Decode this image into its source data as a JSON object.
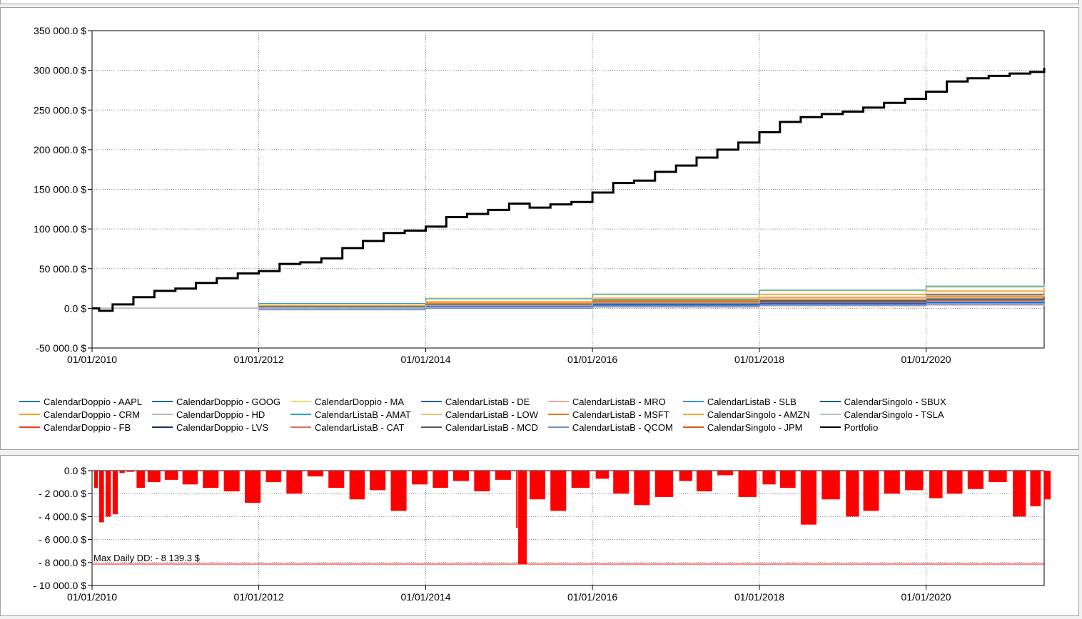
{
  "chart_data": [
    {
      "type": "line",
      "title": "",
      "xlabel": "",
      "ylabel": "",
      "x_range": [
        "01/01/2010",
        "01/06/2021"
      ],
      "ylim": [
        -50000,
        350000
      ],
      "yticks": [
        "350 000.0 $",
        "300 000.0 $",
        "250 000.0 $",
        "200 000.0 $",
        "150 000.0 $",
        "100 000.0 $",
        "50 000.0 $",
        "0.0 $",
        "-50 000.0 $"
      ],
      "ytick_values": [
        350000,
        300000,
        250000,
        200000,
        150000,
        100000,
        50000,
        0,
        -50000
      ],
      "xticks": [
        "01/01/2010",
        "01/01/2012",
        "01/01/2014",
        "01/01/2016",
        "01/01/2018",
        "01/01/2020"
      ],
      "grid": true,
      "legend_position": "bottom",
      "series": [
        {
          "name": "CalendarDoppio - AAPL",
          "color": "#1f77b4",
          "x": [
            "2010-01-01",
            "2012-01-01",
            "2014-01-01",
            "2016-01-01",
            "2018-01-01",
            "2020-01-01",
            "2021-06-01"
          ],
          "values": [
            0,
            1500,
            3000,
            4000,
            5500,
            7000,
            8000
          ]
        },
        {
          "name": "CalendarDoppio - CRM",
          "color": "#ff9f1c",
          "x": [
            "2010-01-01",
            "2012-01-01",
            "2014-01-01",
            "2016-01-01",
            "2018-01-01",
            "2020-01-01",
            "2021-06-01"
          ],
          "values": [
            0,
            2500,
            6000,
            9000,
            12000,
            15000,
            18000
          ]
        },
        {
          "name": "CalendarDoppio - FB",
          "color": "#e8401c",
          "x": [
            "2010-01-01",
            "2012-01-01",
            "2014-01-01",
            "2016-01-01",
            "2018-01-01",
            "2020-01-01",
            "2021-06-01"
          ],
          "values": [
            0,
            500,
            2500,
            5000,
            7500,
            10000,
            12000
          ]
        },
        {
          "name": "CalendarDoppio - GOOG",
          "color": "#1d6a8a",
          "x": [
            "2010-01-01",
            "2012-01-01",
            "2014-01-01",
            "2016-01-01",
            "2018-01-01",
            "2020-01-01",
            "2021-06-01"
          ],
          "values": [
            0,
            3000,
            8000,
            11000,
            14000,
            17000,
            20000
          ]
        },
        {
          "name": "CalendarDoppio - HD",
          "color": "#b8b8b8",
          "x": [
            "2010-01-01",
            "2012-01-01",
            "2014-01-01",
            "2016-01-01",
            "2018-01-01",
            "2020-01-01",
            "2021-06-01"
          ],
          "values": [
            0,
            -2000,
            1000,
            3000,
            6000,
            9000,
            11000
          ]
        },
        {
          "name": "CalendarDoppio - LVS",
          "color": "#1a2f6b",
          "x": [
            "2010-01-01",
            "2012-01-01",
            "2014-01-01",
            "2016-01-01",
            "2018-01-01",
            "2020-01-01",
            "2021-06-01"
          ],
          "values": [
            0,
            1000,
            4000,
            6000,
            8000,
            11000,
            13000
          ]
        },
        {
          "name": "CalendarDoppio - MA",
          "color": "#ffd966",
          "x": [
            "2010-01-01",
            "2012-01-01",
            "2014-01-01",
            "2016-01-01",
            "2018-01-01",
            "2020-01-01",
            "2021-06-01"
          ],
          "values": [
            0,
            4000,
            13000,
            17000,
            22000,
            26000,
            28000
          ]
        },
        {
          "name": "CalendarListaB - AMAT",
          "color": "#2aa1d4",
          "x": [
            "2010-01-01",
            "2012-01-01",
            "2014-01-01",
            "2016-01-01",
            "2018-01-01",
            "2020-01-01",
            "2021-06-01"
          ],
          "values": [
            0,
            6000,
            12000,
            18000,
            23000,
            28000,
            31000
          ]
        },
        {
          "name": "CalendarListaB - CAT",
          "color": "#e07050",
          "x": [
            "2010-01-01",
            "2012-01-01",
            "2014-01-01",
            "2016-01-01",
            "2018-01-01",
            "2020-01-01",
            "2021-06-01"
          ],
          "values": [
            0,
            2000,
            5000,
            8000,
            11000,
            14000,
            16000
          ]
        },
        {
          "name": "CalendarListaB - DE",
          "color": "#1560bd",
          "x": [
            "2010-01-01",
            "2012-01-01",
            "2014-01-01",
            "2016-01-01",
            "2018-01-01",
            "2020-01-01",
            "2021-06-01"
          ],
          "values": [
            0,
            1000,
            3000,
            5000,
            6000,
            8000,
            9000
          ]
        },
        {
          "name": "CalendarListaB - LOW",
          "color": "#f5c27a",
          "x": [
            "2010-01-01",
            "2012-01-01",
            "2014-01-01",
            "2016-01-01",
            "2018-01-01",
            "2020-01-01",
            "2021-06-01"
          ],
          "values": [
            0,
            3000,
            9000,
            13000,
            17000,
            21000,
            24000
          ]
        },
        {
          "name": "CalendarListaB - MCD",
          "color": "#4a5a6a",
          "x": [
            "2010-01-01",
            "2012-01-01",
            "2014-01-01",
            "2016-01-01",
            "2018-01-01",
            "2020-01-01",
            "2021-06-01"
          ],
          "values": [
            0,
            1500,
            4000,
            6500,
            9000,
            11000,
            12500
          ]
        },
        {
          "name": "CalendarListaB - MRO",
          "color": "#f4a896",
          "x": [
            "2010-01-01",
            "2012-01-01",
            "2014-01-01",
            "2016-01-01",
            "2018-01-01",
            "2020-01-01",
            "2021-06-01"
          ],
          "values": [
            0,
            -1000,
            500,
            1500,
            3000,
            4000,
            5000
          ]
        },
        {
          "name": "CalendarListaB - MSFT",
          "color": "#e8781c",
          "x": [
            "2010-01-01",
            "2012-01-01",
            "2014-01-01",
            "2016-01-01",
            "2018-01-01",
            "2020-01-01",
            "2021-06-01"
          ],
          "values": [
            0,
            2500,
            6500,
            10000,
            14000,
            18000,
            21000
          ]
        },
        {
          "name": "CalendarListaB - QCOM",
          "color": "#6f8fd0",
          "x": [
            "2010-01-01",
            "2012-01-01",
            "2014-01-01",
            "2016-01-01",
            "2018-01-01",
            "2020-01-01",
            "2021-06-01"
          ],
          "values": [
            0,
            -1500,
            0,
            2000,
            4000,
            5000,
            6000
          ]
        },
        {
          "name": "CalendarListaB - SLB",
          "color": "#3a8ee6",
          "x": [
            "2010-01-01",
            "2012-01-01",
            "2014-01-01",
            "2016-01-01",
            "2018-01-01",
            "2020-01-01",
            "2021-06-01"
          ],
          "values": [
            0,
            500,
            2000,
            3500,
            5000,
            6500,
            7500
          ]
        },
        {
          "name": "CalendarSingolo - AMZN",
          "color": "#f0a830",
          "x": [
            "2010-01-01",
            "2012-01-01",
            "2014-01-01",
            "2016-01-01",
            "2018-01-01",
            "2020-01-01",
            "2021-06-01"
          ],
          "values": [
            0,
            3500,
            8000,
            13000,
            18000,
            22000,
            25000
          ]
        },
        {
          "name": "CalendarSingolo - JPM",
          "color": "#e0501c",
          "x": [
            "2010-01-01",
            "2012-01-01",
            "2014-01-01",
            "2016-01-01",
            "2018-01-01",
            "2020-01-01",
            "2021-06-01"
          ],
          "values": [
            0,
            1000,
            3500,
            6000,
            9000,
            11000,
            13000
          ]
        },
        {
          "name": "CalendarSingolo - SBUX",
          "color": "#16607a",
          "x": [
            "2010-01-01",
            "2012-01-01",
            "2014-01-01",
            "2016-01-01",
            "2018-01-01",
            "2020-01-01",
            "2021-06-01"
          ],
          "values": [
            0,
            2000,
            5000,
            8000,
            10000,
            12000,
            14000
          ]
        },
        {
          "name": "CalendarSingolo - TSLA",
          "color": "#c0c0c0",
          "x": [
            "2010-01-01",
            "2012-01-01",
            "2014-01-01",
            "2016-01-01",
            "2018-01-01",
            "2020-01-01",
            "2021-06-01"
          ],
          "values": [
            0,
            1000,
            4000,
            7000,
            11000,
            16000,
            19000
          ]
        },
        {
          "name": "Portfolio",
          "color": "#000000",
          "x": [
            "2010-01-01",
            "2010-02-01",
            "2010-04-01",
            "2010-07-01",
            "2010-10-01",
            "2011-01-01",
            "2011-04-01",
            "2011-07-01",
            "2011-10-01",
            "2012-01-01",
            "2012-04-01",
            "2012-07-01",
            "2012-10-01",
            "2013-01-01",
            "2013-04-01",
            "2013-07-01",
            "2013-10-01",
            "2014-01-01",
            "2014-04-01",
            "2014-07-01",
            "2014-10-01",
            "2015-01-01",
            "2015-04-01",
            "2015-07-01",
            "2015-10-01",
            "2016-01-01",
            "2016-04-01",
            "2016-07-01",
            "2016-10-01",
            "2017-01-01",
            "2017-04-01",
            "2017-07-01",
            "2017-10-01",
            "2018-01-01",
            "2018-04-01",
            "2018-07-01",
            "2018-10-01",
            "2019-01-01",
            "2019-04-01",
            "2019-07-01",
            "2019-10-01",
            "2020-01-01",
            "2020-04-01",
            "2020-07-01",
            "2020-10-01",
            "2021-01-01",
            "2021-04-01",
            "2021-06-01"
          ],
          "values": [
            0,
            -3000,
            5000,
            14000,
            22000,
            25000,
            32000,
            38000,
            44000,
            47000,
            56000,
            58000,
            63000,
            76000,
            85000,
            95000,
            98000,
            103000,
            115000,
            119000,
            124000,
            132000,
            127000,
            131000,
            134000,
            146000,
            158000,
            161000,
            172000,
            180000,
            190000,
            200000,
            209000,
            222000,
            235000,
            241000,
            245000,
            248000,
            253000,
            259000,
            264000,
            273000,
            286000,
            290000,
            293000,
            296000,
            298000,
            303000
          ]
        }
      ]
    },
    {
      "type": "bar",
      "title": "",
      "xlabel": "",
      "ylabel": "",
      "x_range": [
        "01/01/2010",
        "01/06/2021"
      ],
      "ylim": [
        -10000,
        0
      ],
      "yticks": [
        "0.0 $",
        "- 2 000.0 $",
        "- 4 000.0 $",
        "- 6 000.0 $",
        "- 8 000.0 $",
        "- 10 000.0 $"
      ],
      "ytick_values": [
        0,
        -2000,
        -4000,
        -6000,
        -8000,
        -10000
      ],
      "xticks": [
        "01/01/2010",
        "01/01/2012",
        "01/01/2014",
        "01/01/2016",
        "01/01/2018",
        "01/01/2020"
      ],
      "grid": true,
      "series_color": "#ff0000",
      "drawdown_x": [
        "2010-01-10",
        "2010-02-01",
        "2010-03-01",
        "2010-04-01",
        "2010-05-01",
        "2010-06-01",
        "2010-07-15",
        "2010-09-01",
        "2010-11-15",
        "2011-02-01",
        "2011-05-01",
        "2011-08-01",
        "2011-11-01",
        "2012-02-01",
        "2012-05-01",
        "2012-08-01",
        "2012-11-01",
        "2013-02-01",
        "2013-05-01",
        "2013-08-01",
        "2013-11-01",
        "2014-02-01",
        "2014-05-01",
        "2014-08-01",
        "2014-11-01",
        "2015-02-01",
        "2015-02-10",
        "2015-04-01",
        "2015-07-01",
        "2015-10-01",
        "2016-01-15",
        "2016-04-01",
        "2016-07-01",
        "2016-10-01",
        "2017-01-15",
        "2017-04-01",
        "2017-07-01",
        "2017-10-01",
        "2018-01-15",
        "2018-04-01",
        "2018-07-01",
        "2018-10-01",
        "2019-01-15",
        "2019-04-01",
        "2019-07-01",
        "2019-10-01",
        "2020-01-15",
        "2020-04-01",
        "2020-07-01",
        "2020-10-01",
        "2021-01-15",
        "2021-04-01",
        "2021-06-01"
      ],
      "drawdown_values": [
        -1500,
        -4500,
        -4000,
        -3800,
        -200,
        -100,
        -1500,
        -1000,
        -800,
        -1200,
        -1500,
        -1800,
        -2800,
        -1000,
        -2000,
        -500,
        -1500,
        -2500,
        -1700,
        -3500,
        -1200,
        -1500,
        -900,
        -1800,
        -800,
        -5000,
        -8139.3,
        -2500,
        -3500,
        -1500,
        -700,
        -2000,
        -3000,
        -2300,
        -900,
        -1800,
        -400,
        -2300,
        -1200,
        -1500,
        -4700,
        -2500,
        -4000,
        -3500,
        -2000,
        -1700,
        -2400,
        -2000,
        -1600,
        -1000,
        -4000,
        -3100,
        -2500
      ],
      "annotation": "Max Daily DD: - 8 139.3 $",
      "max_dd_value": -8139.3
    }
  ]
}
